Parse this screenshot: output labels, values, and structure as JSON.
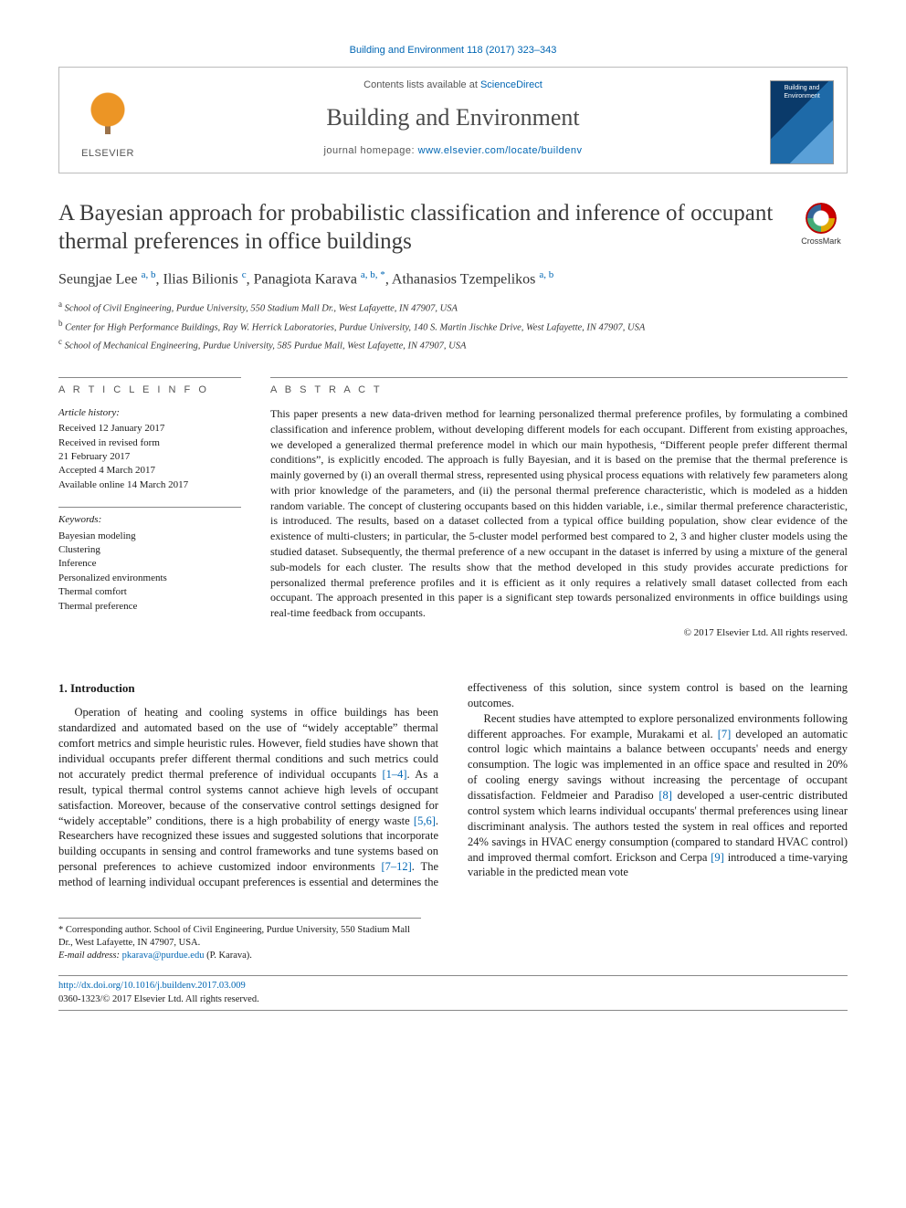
{
  "citation": "Building and Environment 118 (2017) 323–343",
  "header": {
    "contents_prefix": "Contents lists available at ",
    "contents_link": "ScienceDirect",
    "journal": "Building and Environment",
    "homepage_prefix": "journal homepage: ",
    "homepage_url": "www.elsevier.com/locate/buildenv",
    "publisher_word": "ELSEVIER",
    "cover_text": "Building and Environment"
  },
  "crossmark_label": "CrossMark",
  "title": "A Bayesian approach for probabilistic classification and inference of occupant thermal preferences in office buildings",
  "authors_html": "Seungjae Lee <sup>a, b</sup>, Ilias Bilionis <sup>c</sup>, Panagiota Karava <sup>a, b, *</sup>, Athanasios Tzempelikos <sup>a, b</sup>",
  "affiliations": [
    {
      "sup": "a",
      "text": "School of Civil Engineering, Purdue University, 550 Stadium Mall Dr., West Lafayette, IN 47907, USA"
    },
    {
      "sup": "b",
      "text": "Center for High Performance Buildings, Ray W. Herrick Laboratories, Purdue University, 140 S. Martin Jischke Drive, West Lafayette, IN 47907, USA"
    },
    {
      "sup": "c",
      "text": "School of Mechanical Engineering, Purdue University, 585 Purdue Mall, West Lafayette, IN 47907, USA"
    }
  ],
  "article_info": {
    "head": "A R T I C L E  I N F O",
    "history_label": "Article history:",
    "history": [
      "Received 12 January 2017",
      "Received in revised form",
      "21 February 2017",
      "Accepted 4 March 2017",
      "Available online 14 March 2017"
    ],
    "keywords_label": "Keywords:",
    "keywords": [
      "Bayesian modeling",
      "Clustering",
      "Inference",
      "Personalized environments",
      "Thermal comfort",
      "Thermal preference"
    ]
  },
  "abstract": {
    "head": "A B S T R A C T",
    "text": "This paper presents a new data-driven method for learning personalized thermal preference profiles, by formulating a combined classification and inference problem, without developing different models for each occupant. Different from existing approaches, we developed a generalized thermal preference model in which our main hypothesis, “Different people prefer different thermal conditions”, is explicitly encoded. The approach is fully Bayesian, and it is based on the premise that the thermal preference is mainly governed by (i) an overall thermal stress, represented using physical process equations with relatively few parameters along with prior knowledge of the parameters, and (ii) the personal thermal preference characteristic, which is modeled as a hidden random variable. The concept of clustering occupants based on this hidden variable, i.e., similar thermal preference characteristic, is introduced. The results, based on a dataset collected from a typical office building population, show clear evidence of the existence of multi-clusters; in particular, the 5-cluster model performed best compared to 2, 3 and higher cluster models using the studied dataset. Subsequently, the thermal preference of a new occupant in the dataset is inferred by using a mixture of the general sub-models for each cluster. The results show that the method developed in this study provides accurate predictions for personalized thermal preference profiles and it is efficient as it only requires a relatively small dataset collected from each occupant. The approach presented in this paper is a significant step towards personalized environments in office buildings using real-time feedback from occupants.",
    "copyright": "© 2017 Elsevier Ltd. All rights reserved."
  },
  "body": {
    "section_num": "1.",
    "section_title": "Introduction",
    "col1_p1_a": "Operation of heating and cooling systems in office buildings has been standardized and automated based on the use of “widely acceptable” thermal comfort metrics and simple heuristic rules. However, field studies have shown that individual occupants prefer different thermal conditions and such metrics could not accurately predict thermal preference of individual occupants ",
    "ref_1_4": "[1–4]",
    "col1_p1_b": ". As a result, typical thermal control systems cannot achieve high levels of occupant satisfaction. Moreover, because of the conservative control settings designed for “widely acceptable” conditions, there is a high probability of energy waste ",
    "ref_5_6": "[5,6]",
    "col1_p1_c": ". Researchers have recognized these issues and suggested solutions that incorporate building",
    "col2_p1_a": "occupants in sensing and control frameworks and tune systems based on personal preferences to achieve customized indoor environments ",
    "ref_7_12": "[7–12]",
    "col2_p1_b": ". The method of learning individual occupant preferences is essential and determines the effectiveness of this solution, since system control is based on the learning outcomes.",
    "col2_p2_a": "Recent studies have attempted to explore personalized environments following different approaches. For example, Murakami et al. ",
    "ref_7": "[7]",
    "col2_p2_b": " developed an automatic control logic which maintains a balance between occupants' needs and energy consumption. The logic was implemented in an office space and resulted in 20% of cooling energy savings without increasing the percentage of occupant dissatisfaction. Feldmeier and Paradiso ",
    "ref_8": "[8]",
    "col2_p2_c": " developed a user-centric distributed control system which learns individual occupants' thermal preferences using linear discriminant analysis. The authors tested the system in real offices and reported 24% savings in HVAC energy consumption (compared to standard HVAC control) and improved thermal comfort. Erickson and Cerpa ",
    "ref_9": "[9]",
    "col2_p2_d": " introduced a time-varying variable in the predicted mean vote"
  },
  "footnotes": {
    "corr": "* Corresponding author. School of Civil Engineering, Purdue University, 550 Stadium Mall Dr., West Lafayette, IN 47907, USA.",
    "email_label": "E-mail address:",
    "email": "pkarava@purdue.edu",
    "email_suffix": "(P. Karava)."
  },
  "doi": {
    "url": "http://dx.doi.org/10.1016/j.buildenv.2017.03.009",
    "issn_line": "0360-1323/© 2017 Elsevier Ltd. All rights reserved."
  },
  "colors": {
    "link": "#0066b3",
    "rule": "#888888",
    "text": "#1a1a1a",
    "elsevier_orange": "#e98300"
  }
}
